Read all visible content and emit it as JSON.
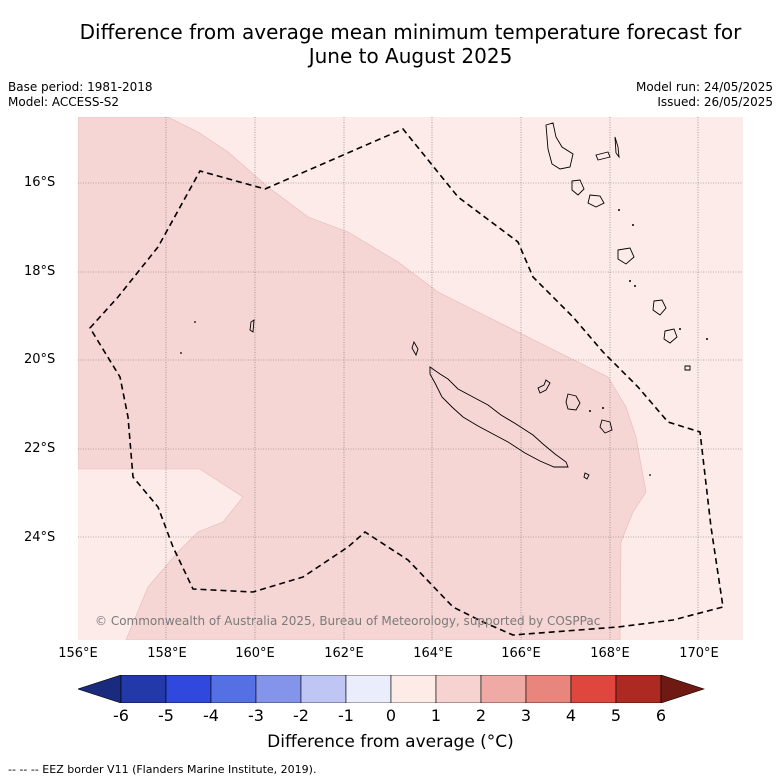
{
  "header": {
    "title_line1": "Difference from average mean minimum temperature forecast for",
    "title_line2": "June to August 2025",
    "base_period": "Base period: 1981-2018",
    "model": "Model: ACCESS-S2",
    "model_run": "Model run: 24/05/2025",
    "issued": "Issued: 26/05/2025"
  },
  "map": {
    "lat_labels": [
      "16°S",
      "18°S",
      "20°S",
      "22°S",
      "24°S"
    ],
    "lon_labels": [
      "156°E",
      "158°E",
      "160°E",
      "162°E",
      "164°E",
      "166°E",
      "168°E",
      "170°E"
    ],
    "copyright": "© Commonwealth of Australia 2025, Bureau of Meteorology, supported by COSPPac",
    "colors": {
      "anomaly_0_1": "#fcebe9",
      "anomaly_1_2": "#f6d6d4",
      "coastline": "#000000",
      "eez_border": "#000000",
      "gridline": "#808080"
    }
  },
  "colorbar": {
    "ticks": [
      "-6",
      "-5",
      "-4",
      "-3",
      "-2",
      "-1",
      "0",
      "1",
      "2",
      "3",
      "4",
      "5",
      "6"
    ],
    "label": "Difference from average ($^\\circ$C)",
    "label_display": "Difference from average (°C)",
    "colors": [
      "#1a2a7c",
      "#2439a9",
      "#3048de",
      "#5470e3",
      "#8494ea",
      "#c0c6f4",
      "#eaedfb",
      "#fdebe8",
      "#f6d3d0",
      "#f0aaa5",
      "#e8857c",
      "#de463e",
      "#ac2a22",
      "#6e1a12"
    ]
  },
  "footer": {
    "eez_legend": "-- -- -- EEZ border V11 (Flanders Marine Institute, 2019)."
  }
}
